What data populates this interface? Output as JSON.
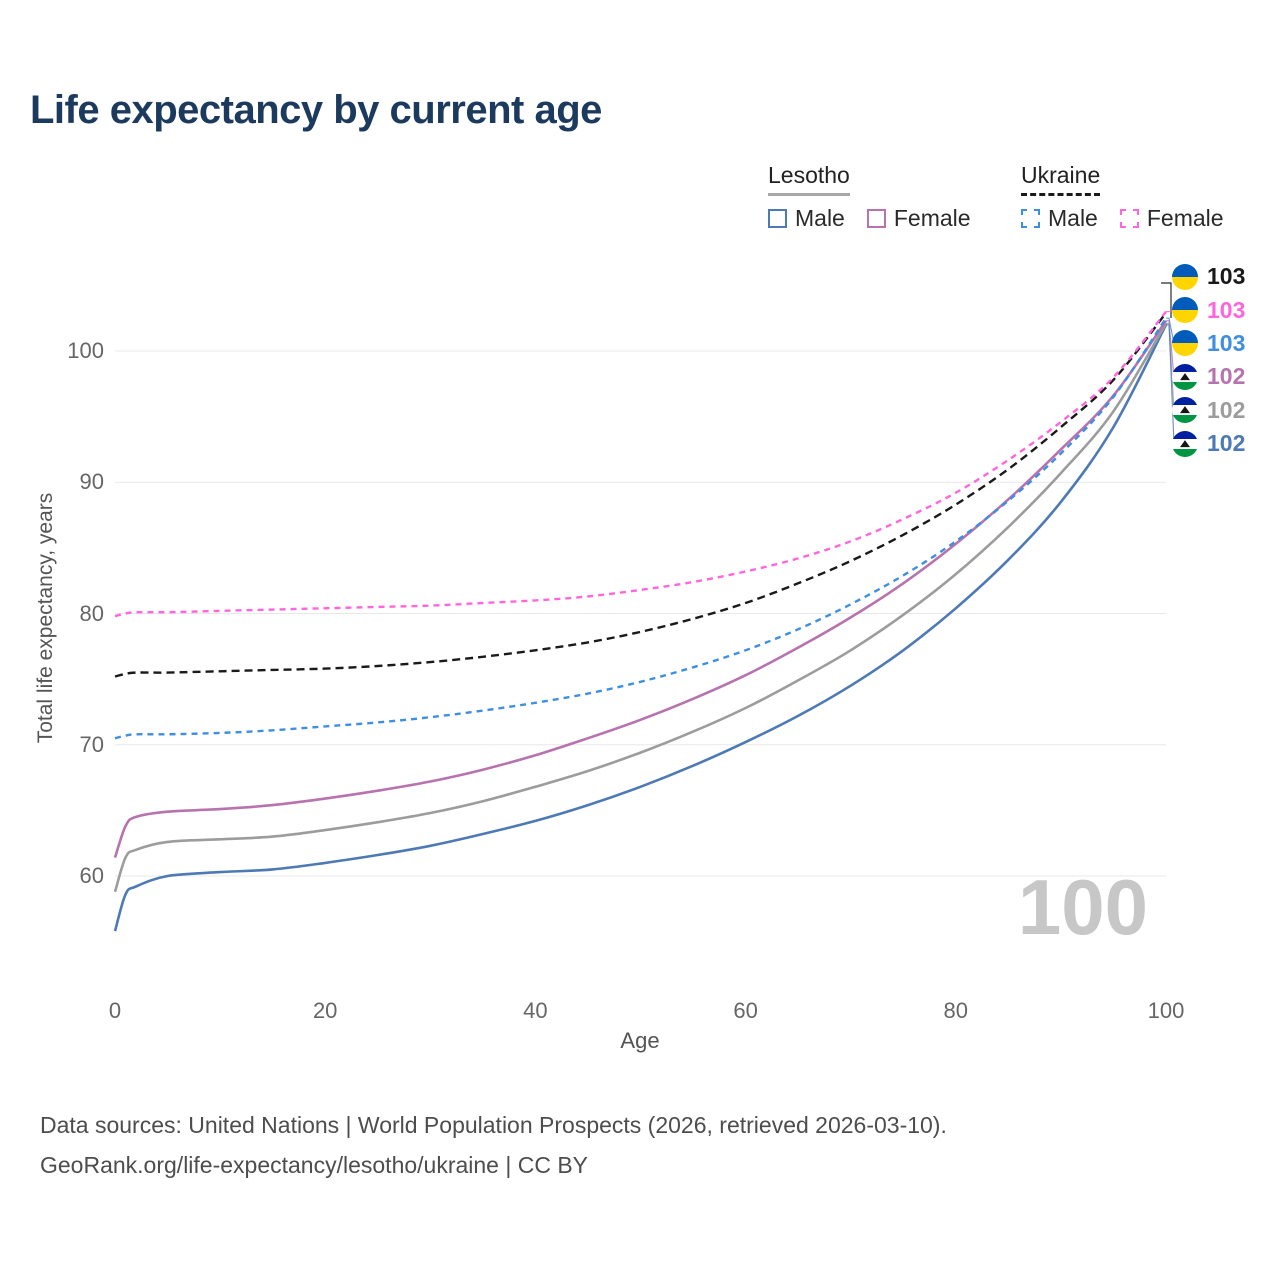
{
  "title": "Life expectancy by current age",
  "legend": {
    "groups": [
      {
        "country": "Lesotho",
        "line_style": "solid",
        "line_color": "#a8a8a8",
        "items": [
          {
            "label": "Male",
            "color": "#4d7ab5",
            "dashed": false
          },
          {
            "label": "Female",
            "color": "#b773ae",
            "dashed": false
          }
        ]
      },
      {
        "country": "Ukraine",
        "line_style": "dashed",
        "line_color": "#1a1a1a",
        "items": [
          {
            "label": "Male",
            "color": "#3f8fe0",
            "dashed": true
          },
          {
            "label": "Female",
            "color": "#ff66dd",
            "dashed": true
          }
        ]
      }
    ]
  },
  "axes": {
    "xlabel": "Age",
    "ylabel": "Total life expectancy, years",
    "x_ticks": [
      0,
      20,
      40,
      60,
      80,
      100
    ],
    "y_ticks": [
      60,
      70,
      80,
      90,
      100
    ]
  },
  "watermark": "100",
  "end_labels": [
    {
      "value": "103",
      "color": "#1a1a1a",
      "flag": "ukraine",
      "series": "ukraine_both"
    },
    {
      "value": "103",
      "color": "#ff66dd",
      "flag": "ukraine",
      "series": "ukraine_female"
    },
    {
      "value": "103",
      "color": "#3f8fe0",
      "flag": "ukraine",
      "series": "ukraine_male"
    },
    {
      "value": "102",
      "color": "#b773ae",
      "flag": "lesotho",
      "series": "lesotho_female"
    },
    {
      "value": "102",
      "color": "#9c9c9c",
      "flag": "lesotho",
      "series": "lesotho_both"
    },
    {
      "value": "102",
      "color": "#4d7ab5",
      "flag": "lesotho",
      "series": "lesotho_male"
    }
  ],
  "footer": {
    "line1": "Data sources: United Nations | World Population Prospects (2026, retrieved 2026-03-10).",
    "line2": "GeoRank.org/life-expectancy/lesotho/ukraine | CC BY"
  },
  "flag_colors": {
    "ukraine": [
      "#005BBB",
      "#FFD500"
    ],
    "lesotho": [
      "#00209F",
      "#FFFFFF",
      "#009543"
    ]
  },
  "chart_data": {
    "type": "line",
    "title": "Life expectancy by current age",
    "xlabel": "Age",
    "ylabel": "Total life expectancy, years",
    "xlim": [
      0,
      100
    ],
    "ylim": [
      55,
      105
    ],
    "grid": "horizontal",
    "legend_position": "top-right",
    "x": [
      0,
      1,
      2,
      5,
      10,
      15,
      20,
      25,
      30,
      35,
      40,
      45,
      50,
      55,
      60,
      65,
      70,
      75,
      80,
      85,
      90,
      95,
      100
    ],
    "series": [
      {
        "name": "lesotho_male",
        "country": "Lesotho",
        "sex": "Male",
        "color": "#4d7ab5",
        "dashed": false,
        "values": [
          55.8,
          58.6,
          59.2,
          60.0,
          60.3,
          60.5,
          61.0,
          61.6,
          62.3,
          63.2,
          64.2,
          65.4,
          66.8,
          68.4,
          70.2,
          72.2,
          74.5,
          77.2,
          80.4,
          84.1,
          88.5,
          94.2,
          102.0
        ]
      },
      {
        "name": "lesotho_both",
        "country": "Lesotho",
        "sex": "Both",
        "color": "#9c9c9c",
        "dashed": false,
        "values": [
          58.8,
          61.4,
          62.0,
          62.6,
          62.8,
          63.0,
          63.5,
          64.1,
          64.8,
          65.7,
          66.8,
          68.0,
          69.4,
          71.0,
          72.8,
          74.9,
          77.2,
          79.9,
          83.0,
          86.6,
          90.7,
          95.4,
          102.1
        ]
      },
      {
        "name": "lesotho_female",
        "country": "Lesotho",
        "sex": "Female",
        "color": "#b773ae",
        "dashed": false,
        "values": [
          61.4,
          63.8,
          64.5,
          64.9,
          65.1,
          65.4,
          65.9,
          66.5,
          67.2,
          68.1,
          69.2,
          70.5,
          71.9,
          73.5,
          75.3,
          77.4,
          79.7,
          82.3,
          85.3,
          88.7,
          92.5,
          96.6,
          102.3
        ]
      },
      {
        "name": "ukraine_male",
        "country": "Ukraine",
        "sex": "Male",
        "color": "#3f8fe0",
        "dashed": true,
        "values": [
          70.5,
          70.7,
          70.8,
          70.8,
          70.9,
          71.1,
          71.4,
          71.7,
          72.1,
          72.6,
          73.2,
          73.9,
          74.8,
          75.9,
          77.2,
          78.8,
          80.7,
          82.9,
          85.5,
          88.6,
          92.2,
          96.5,
          102.5
        ]
      },
      {
        "name": "ukraine_both",
        "country": "Ukraine",
        "sex": "Both",
        "color": "#1a1a1a",
        "dashed": true,
        "values": [
          75.2,
          75.4,
          75.5,
          75.5,
          75.6,
          75.7,
          75.8,
          76.0,
          76.3,
          76.7,
          77.2,
          77.8,
          78.6,
          79.6,
          80.8,
          82.3,
          84.0,
          86.0,
          88.3,
          91.0,
          94.2,
          97.8,
          102.9
        ]
      },
      {
        "name": "ukraine_female",
        "country": "Ukraine",
        "sex": "Female",
        "color": "#ff66dd",
        "dashed": true,
        "values": [
          79.8,
          80.0,
          80.1,
          80.1,
          80.2,
          80.3,
          80.4,
          80.5,
          80.6,
          80.8,
          81.0,
          81.3,
          81.8,
          82.4,
          83.2,
          84.2,
          85.5,
          87.2,
          89.2,
          91.7,
          94.6,
          98.0,
          103.0
        ]
      }
    ]
  }
}
